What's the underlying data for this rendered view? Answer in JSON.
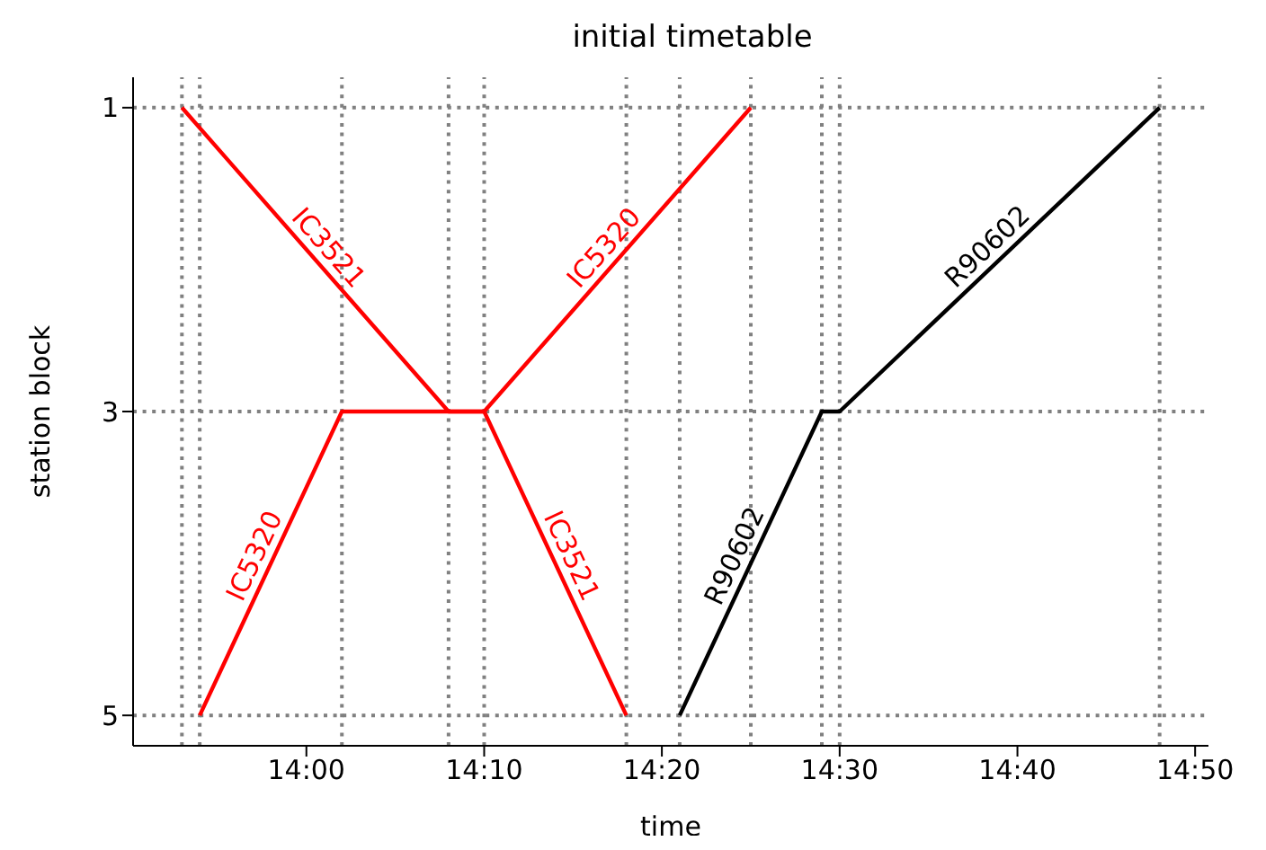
{
  "chart_data": {
    "type": "line",
    "title": "initial timetable",
    "xlabel": "time",
    "ylabel": "station block",
    "xlim": [
      13.8375,
      14.8458
    ],
    "xticks": [
      {
        "value": 14,
        "label": "14:00"
      },
      {
        "value": 14.1667,
        "label": "14:10"
      },
      {
        "value": 14.3333,
        "label": "14:20"
      },
      {
        "value": 14.5,
        "label": "14:30"
      },
      {
        "value": 14.6667,
        "label": "14:40"
      },
      {
        "value": 14.8333,
        "label": "14:50"
      }
    ],
    "ylim": [
      5.2,
      0.8
    ],
    "yticks": [
      1,
      3,
      5
    ],
    "series": [
      {
        "name": "IC3521",
        "color": "#ff0000",
        "x": [
          13.8833,
          14.1333,
          14.1667,
          14.3
        ],
        "values": [
          1,
          3,
          3,
          5
        ]
      },
      {
        "name": "IC5320",
        "color": "#ff0000",
        "x": [
          13.9,
          14.0333,
          14.1667,
          14.4167
        ],
        "values": [
          5,
          3,
          3,
          1
        ]
      },
      {
        "name": "R90602",
        "color": "#000000",
        "x": [
          14.35,
          14.4833,
          14.5,
          14.8
        ],
        "values": [
          5,
          3,
          3,
          1
        ]
      }
    ],
    "ref_lines": [
      {
        "axis": "x",
        "value": 13.8833,
        "color": "#808080",
        "line_style": "dotted"
      },
      {
        "axis": "x",
        "value": 13.9,
        "color": "#808080",
        "line_style": "dotted"
      },
      {
        "axis": "x",
        "value": 14.0333,
        "color": "#808080",
        "line_style": "dotted"
      },
      {
        "axis": "x",
        "value": 14.1333,
        "color": "#808080",
        "line_style": "dotted"
      },
      {
        "axis": "x",
        "value": 14.1667,
        "color": "#808080",
        "line_style": "dotted"
      },
      {
        "axis": "x",
        "value": 14.3,
        "color": "#808080",
        "line_style": "dotted"
      },
      {
        "axis": "x",
        "value": 14.35,
        "color": "#808080",
        "line_style": "dotted"
      },
      {
        "axis": "x",
        "value": 14.4167,
        "color": "#808080",
        "line_style": "dotted"
      },
      {
        "axis": "x",
        "value": 14.4833,
        "color": "#808080",
        "line_style": "dotted"
      },
      {
        "axis": "x",
        "value": 14.5,
        "color": "#808080",
        "line_style": "dotted"
      },
      {
        "axis": "x",
        "value": 14.8,
        "color": "#808080",
        "line_style": "dotted"
      }
    ],
    "grid": "y",
    "legend": false,
    "marker": "none",
    "line_style": "solid"
  }
}
